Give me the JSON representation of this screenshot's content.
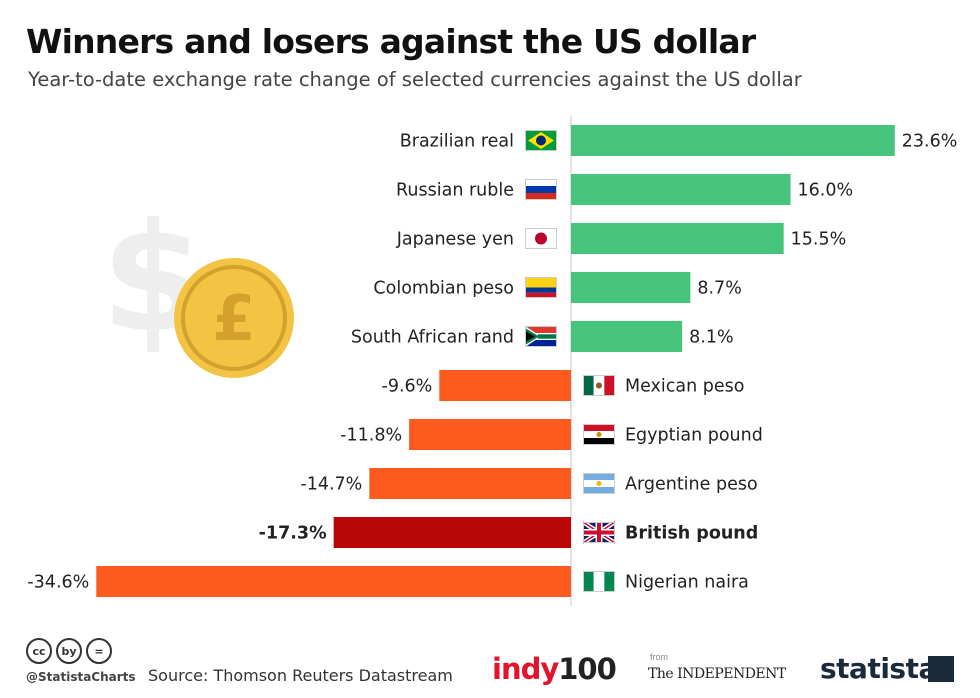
{
  "header": {
    "title": "Winners and losers against the US dollar",
    "subtitle": "Year-to-date exchange rate change of selected currencies against the US dollar"
  },
  "chart_data": {
    "type": "bar",
    "orientation": "horizontal",
    "title": "Winners and losers against the US dollar",
    "subtitle": "Year-to-date exchange rate change of selected currencies against the US dollar",
    "categories": [
      "Brazilian real",
      "Russian ruble",
      "Japanese yen",
      "Colombian peso",
      "South African rand",
      "Mexican peso",
      "Egyptian pound",
      "Argentine peso",
      "British pound",
      "Nigerian naira"
    ],
    "values": [
      23.6,
      16.0,
      15.5,
      8.7,
      8.1,
      -9.6,
      -11.8,
      -14.7,
      -17.3,
      -34.6
    ],
    "value_labels": [
      "23.6%",
      "16.0%",
      "15.5%",
      "8.7%",
      "8.1%",
      "-9.6%",
      "-11.8%",
      "-14.7%",
      "-17.3%",
      "-34.6%"
    ],
    "highlight": "British pound",
    "colors": {
      "positive": "#46c47b",
      "negative": "#fd5a1e",
      "highlight": "#b90707"
    },
    "unit": "%",
    "xlim": [
      -34.6,
      23.6
    ]
  },
  "flags": [
    "brazil-flag-icon",
    "russia-flag-icon",
    "japan-flag-icon",
    "colombia-flag-icon",
    "south-africa-flag-icon",
    "mexico-flag-icon",
    "egypt-flag-icon",
    "argentina-flag-icon",
    "uk-flag-icon",
    "nigeria-flag-icon"
  ],
  "decor": {
    "dollar_icon": "dollar-sign-icon",
    "coin_icon": "pound-coin-icon",
    "coin_symbol": "£",
    "dollar_symbol": "$"
  },
  "footer": {
    "license_icons": [
      "cc",
      "by",
      "="
    ],
    "handle": "@StatistaCharts",
    "source": "Source: Thomson Reuters Datastream",
    "indy_part1": "indy",
    "indy_part2": "100",
    "from_label": "from",
    "independent": "The INDEPENDENT",
    "statista": "statista"
  }
}
